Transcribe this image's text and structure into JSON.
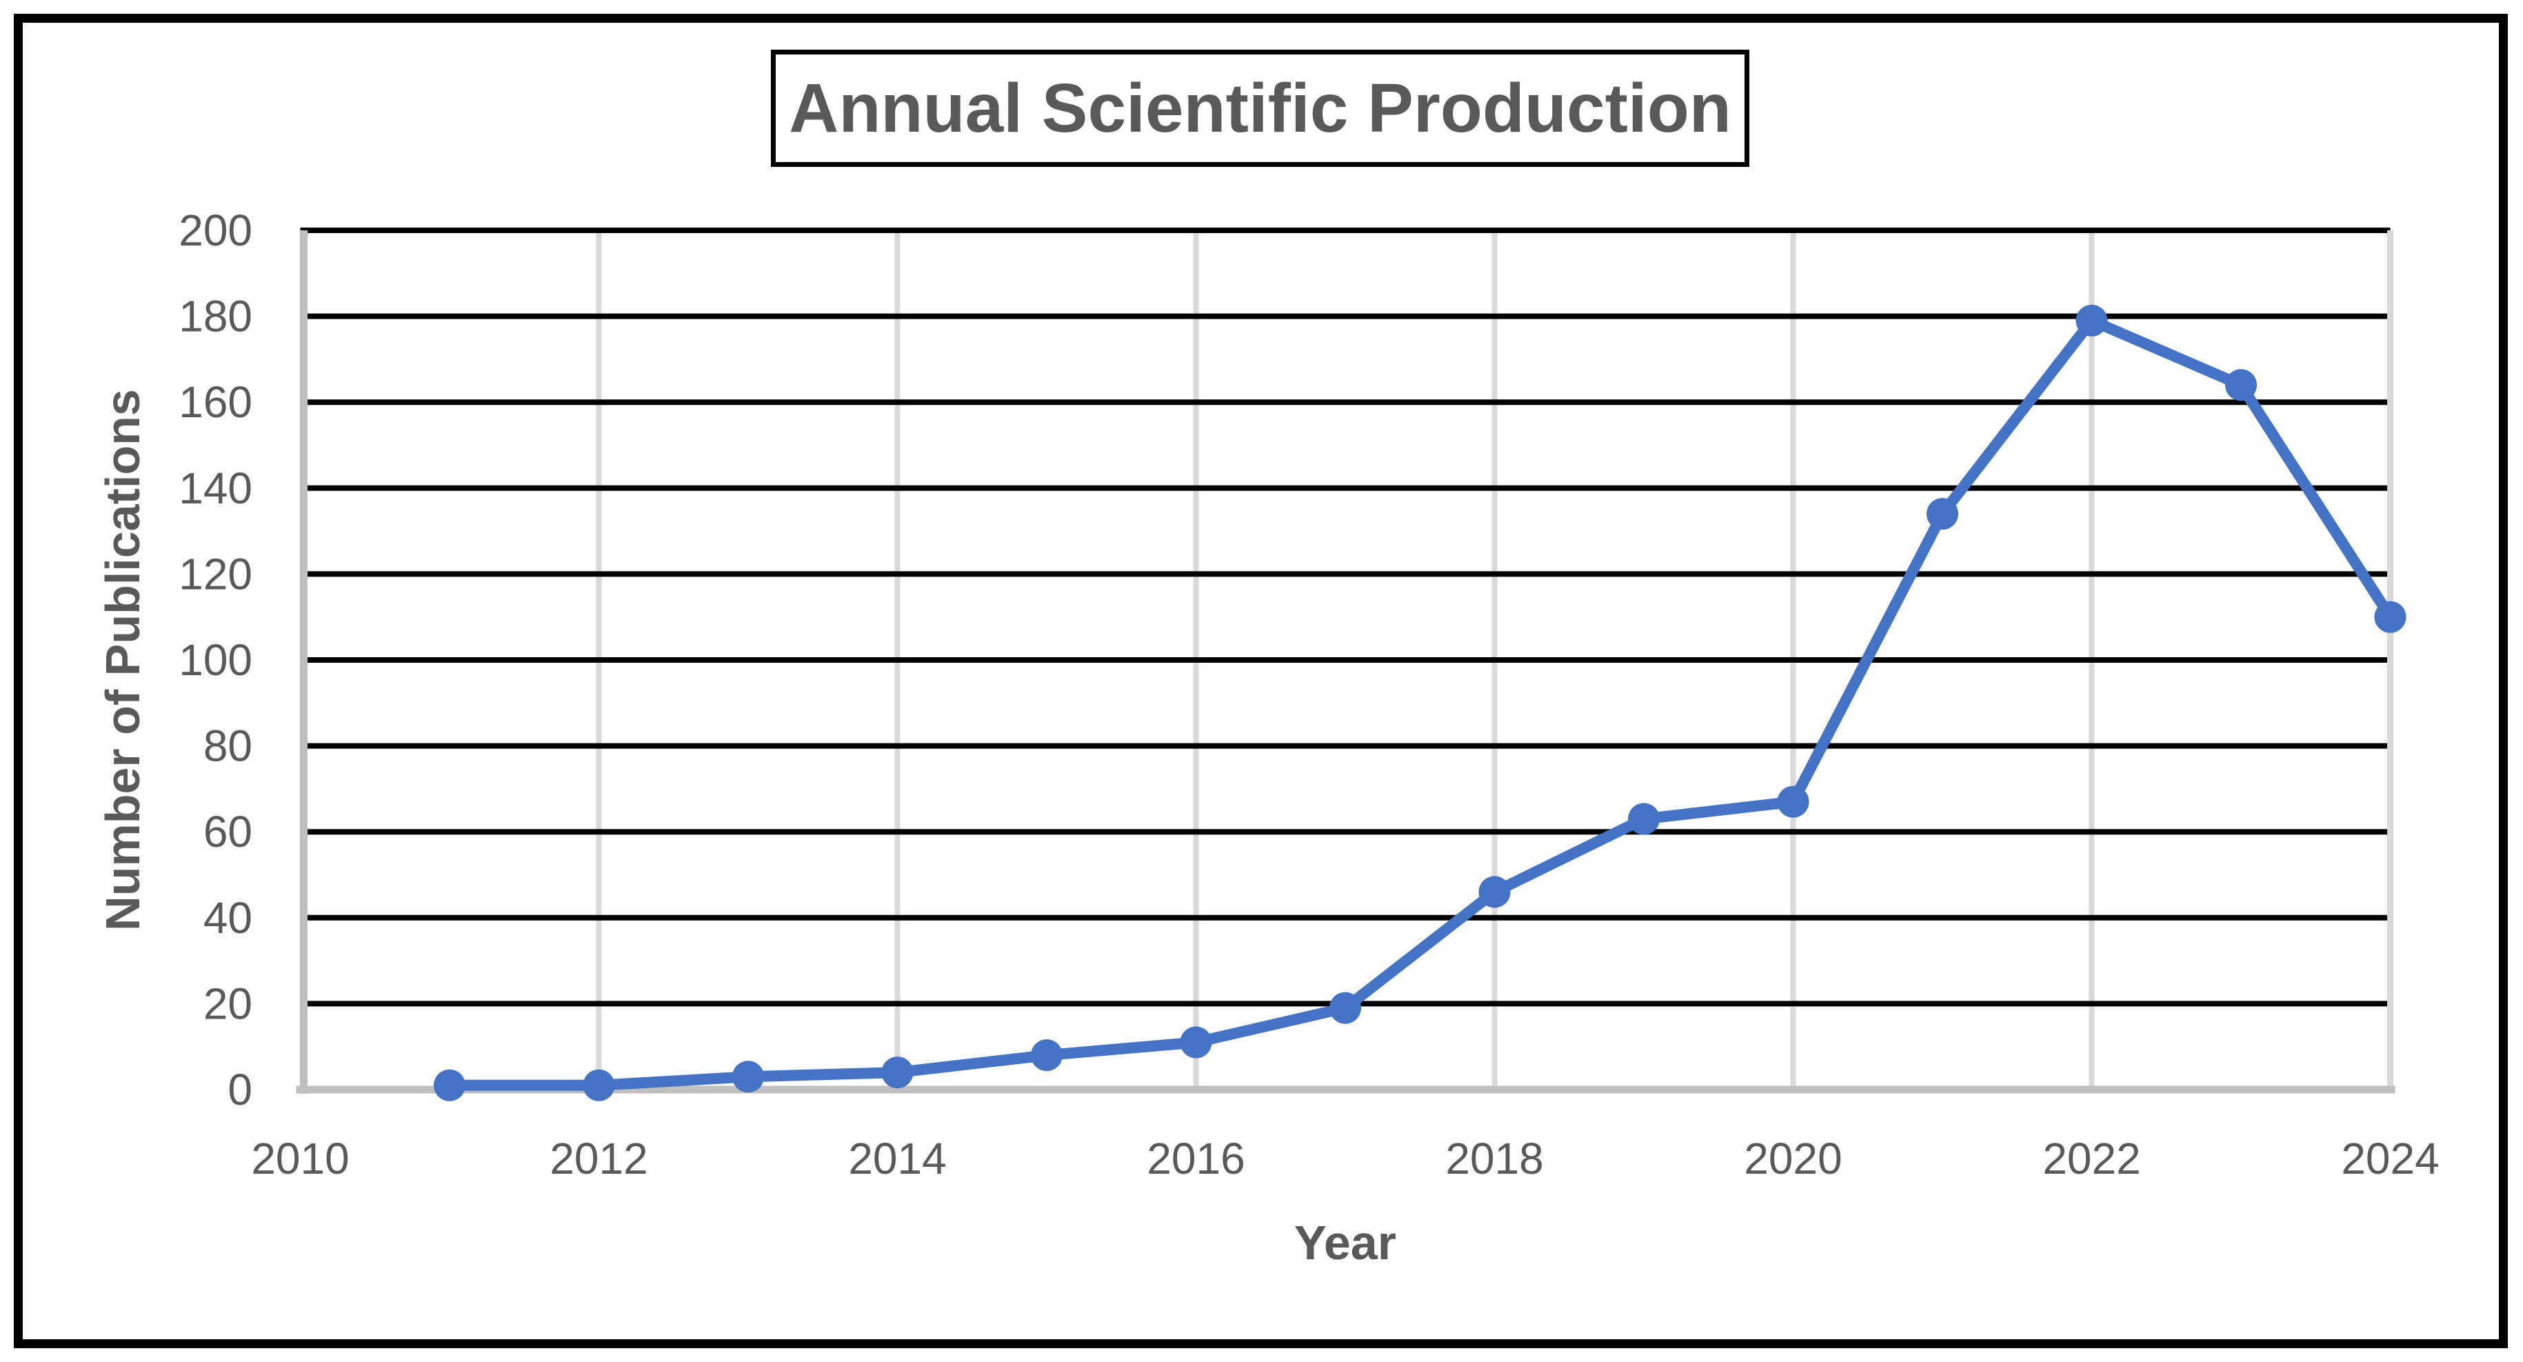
{
  "chart_data": {
    "type": "line",
    "title": "Annual Scientific Production",
    "xlabel": "Year",
    "ylabel": "Number of Publications",
    "x": [
      2011,
      2012,
      2013,
      2014,
      2015,
      2016,
      2017,
      2018,
      2019,
      2020,
      2021,
      2022,
      2023,
      2024
    ],
    "values": [
      1,
      1,
      3,
      4,
      8,
      11,
      19,
      46,
      63,
      67,
      134,
      179,
      164,
      110
    ],
    "xlim": [
      2010,
      2024
    ],
    "ylim": [
      0,
      200
    ],
    "x_ticks": [
      2010,
      2012,
      2014,
      2016,
      2018,
      2020,
      2022,
      2024
    ],
    "y_ticks": [
      0,
      20,
      40,
      60,
      80,
      100,
      120,
      140,
      160,
      180,
      200
    ],
    "grid": {
      "horizontal": true,
      "vertical": true
    },
    "legend": "none",
    "marker_shape": "circle",
    "colors": {
      "series": "#4472C4",
      "title_text": "#595959",
      "tick_labels": "#595959",
      "axis_titles": "#595959",
      "h_gridlines": "#000000",
      "v_gridlines": "#D9D9D9",
      "axis_lines": "#BFBFBF",
      "frame_border": "#000000",
      "title_border": "#000000",
      "background": "#FFFFFF"
    }
  }
}
